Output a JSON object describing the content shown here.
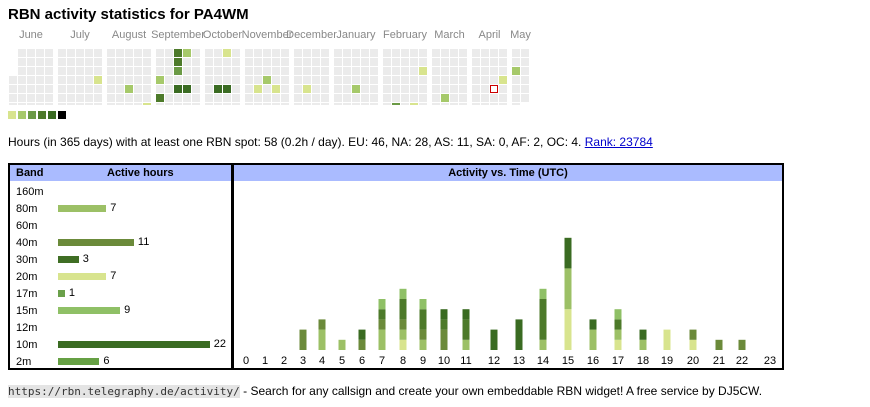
{
  "title": "RBN activity statistics for PA4WM",
  "calendar": {
    "months": [
      "June",
      "July",
      "August",
      "September",
      "October",
      "November",
      "December",
      "January",
      "February",
      "March",
      "April",
      "May"
    ],
    "empty_color": "#ebebeb",
    "today_marker_color": "#cc0000",
    "active_days": [
      {
        "week": 10,
        "day": 4,
        "level": 1
      },
      {
        "week": 13,
        "day": 5,
        "level": 2
      },
      {
        "week": 15,
        "day": 7,
        "level": 1
      },
      {
        "week": 16,
        "day": 4,
        "level": 2
      },
      {
        "week": 16,
        "day": 6,
        "level": 4
      },
      {
        "week": 18,
        "day": 1,
        "level": 4
      },
      {
        "week": 18,
        "day": 2,
        "level": 4
      },
      {
        "week": 18,
        "day": 3,
        "level": 3
      },
      {
        "week": 18,
        "day": 5,
        "level": 5
      },
      {
        "week": 19,
        "day": 1,
        "level": 2
      },
      {
        "week": 19,
        "day": 5,
        "level": 5
      },
      {
        "week": 22,
        "day": 5,
        "level": 5
      },
      {
        "week": 23,
        "day": 1,
        "level": 1
      },
      {
        "week": 23,
        "day": 5,
        "level": 5
      },
      {
        "week": 26,
        "day": 5,
        "level": 1
      },
      {
        "week": 27,
        "day": 4,
        "level": 2
      },
      {
        "week": 28,
        "day": 5,
        "level": 1
      },
      {
        "week": 31,
        "day": 5,
        "level": 1
      },
      {
        "week": 36,
        "day": 5,
        "level": 2
      },
      {
        "week": 40,
        "day": 7,
        "level": 3
      },
      {
        "week": 42,
        "day": 7,
        "level": 1
      },
      {
        "week": 43,
        "day": 3,
        "level": 1
      },
      {
        "week": 45,
        "day": 6,
        "level": 2
      },
      {
        "week": 51,
        "day": 4,
        "level": 1
      },
      {
        "week": 52,
        "day": 3,
        "level": 2
      }
    ],
    "today": {
      "week": 50,
      "day": 5
    }
  },
  "legend_colors": [
    "#d8e48e",
    "#a6c96a",
    "#6b9a45",
    "#4d7a2a",
    "#3a6b22",
    "#000000"
  ],
  "summary": {
    "text": "Hours (in 365 days) with at least one RBN spot: 58 (0.2h / day). EU: 46, NA: 28, AS: 11, SA: 0, AF: 2, OC: 4.",
    "rank_link": "Rank: 23784"
  },
  "band_table": {
    "col_band": "Band",
    "col_hours": "Active hours",
    "rows": [
      {
        "band": "160m",
        "hours": null,
        "color": "#9cc066"
      },
      {
        "band": "80m",
        "hours": 7,
        "color": "#9cc066"
      },
      {
        "band": "60m",
        "hours": null,
        "color": "#9cc066"
      },
      {
        "band": "40m",
        "hours": 11,
        "color": "#6b8a3a"
      },
      {
        "band": "30m",
        "hours": 3,
        "color": "#3f6e24"
      },
      {
        "band": "20m",
        "hours": 7,
        "color": "#d8e48e"
      },
      {
        "band": "17m",
        "hours": 1,
        "color": "#6aa04a"
      },
      {
        "band": "15m",
        "hours": 9,
        "color": "#8fc066"
      },
      {
        "band": "12m",
        "hours": null,
        "color": "#9cc066"
      },
      {
        "band": "10m",
        "hours": 22,
        "color": "#3a6b22"
      },
      {
        "band": "2m",
        "hours": 6,
        "color": "#66a044"
      }
    ]
  },
  "chart_data": {
    "type": "bar",
    "title": "Activity vs. Time (UTC)",
    "stacked": true,
    "categories": [
      "0",
      "1",
      "2",
      "3",
      "4",
      "5",
      "6",
      "7",
      "8",
      "9",
      "10",
      "11",
      "12",
      "13",
      "14",
      "15",
      "16",
      "17",
      "18",
      "19",
      "20",
      "21",
      "22",
      "23"
    ],
    "series": [
      {
        "color": "#d8e48e",
        "values": [
          0,
          0,
          0,
          0,
          0,
          0,
          0,
          0,
          1,
          0,
          0,
          0,
          0,
          0,
          0,
          4,
          0,
          1,
          0,
          2,
          1,
          0,
          0,
          0
        ]
      },
      {
        "color": "#9cc066",
        "values": [
          0,
          0,
          0,
          0,
          2,
          1,
          0,
          2,
          1,
          1,
          0,
          1,
          0,
          0,
          1,
          4,
          2,
          1,
          1,
          0,
          0,
          0,
          0,
          0
        ]
      },
      {
        "color": "#6b8a3a",
        "values": [
          0,
          0,
          0,
          2,
          1,
          0,
          1,
          1,
          1,
          1,
          2,
          0,
          0,
          0,
          0,
          0,
          0,
          0,
          0,
          0,
          1,
          1,
          1,
          0
        ]
      },
      {
        "color": "#4d7a2a",
        "values": [
          0,
          0,
          0,
          0,
          0,
          0,
          0,
          1,
          2,
          2,
          1,
          2,
          0,
          0,
          4,
          0,
          0,
          1,
          0,
          0,
          0,
          0,
          0,
          0
        ]
      },
      {
        "color": "#3a6b22",
        "values": [
          0,
          0,
          0,
          0,
          0,
          0,
          1,
          0,
          0,
          0,
          1,
          1,
          2,
          3,
          0,
          3,
          1,
          0,
          1,
          0,
          0,
          0,
          0,
          0
        ]
      },
      {
        "color": "#8fc066",
        "values": [
          0,
          0,
          0,
          0,
          0,
          0,
          0,
          1,
          1,
          1,
          0,
          0,
          0,
          0,
          1,
          0,
          0,
          1,
          0,
          0,
          0,
          0,
          0,
          0
        ]
      }
    ]
  },
  "footer": {
    "url": "https://rbn.telegraphy.de/activity/",
    "text": " - Search for any callsign and create your own embeddable RBN widget! A free service by DJ5CW."
  }
}
